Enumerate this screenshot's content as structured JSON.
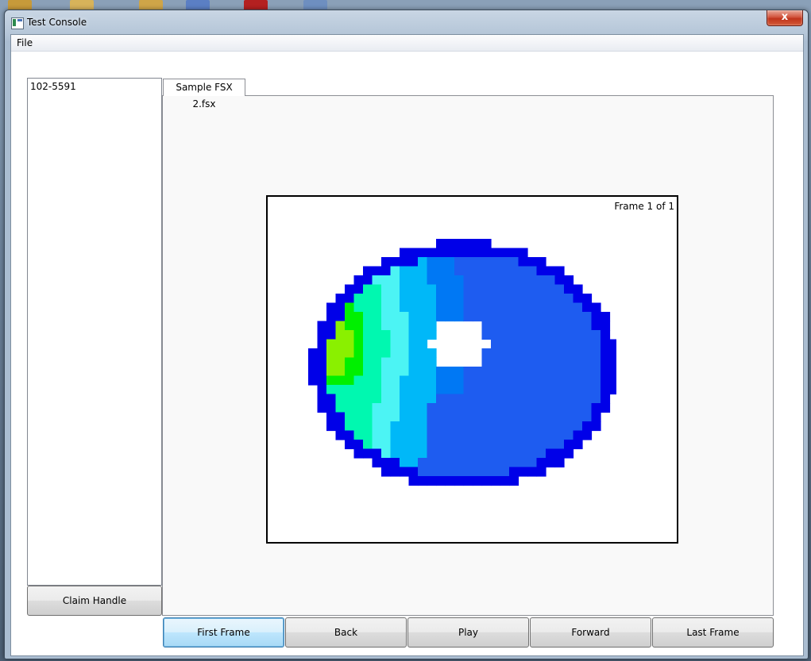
{
  "window": {
    "title": "Test Console",
    "close_glyph": "x"
  },
  "menu": {
    "file": "File"
  },
  "handles": {
    "items": [
      "102-5591"
    ],
    "claim_label": "Claim Handle"
  },
  "tabs": [
    {
      "label": "Sample FSX 2.fsx"
    }
  ],
  "viewer": {
    "frame_label": "Frame 1 of 1"
  },
  "controls": {
    "first_label": "First Frame",
    "back_label": "Back",
    "play_label": "Play",
    "forward_label": "Forward",
    "last_label": "Last Frame"
  },
  "colors": {
    "accent_focus": "#3c7fb1",
    "close_red": "#c0341c",
    "heat_dark_blue": "#0000e8",
    "heat_blue": "#1e5cf0",
    "heat_mid_blue": "#0078f4",
    "heat_sky": "#00b8f8",
    "heat_cyan": "#4cf4f4",
    "heat_aqua": "#00f8b0",
    "heat_green": "#00f000",
    "heat_lime": "#8af000"
  }
}
